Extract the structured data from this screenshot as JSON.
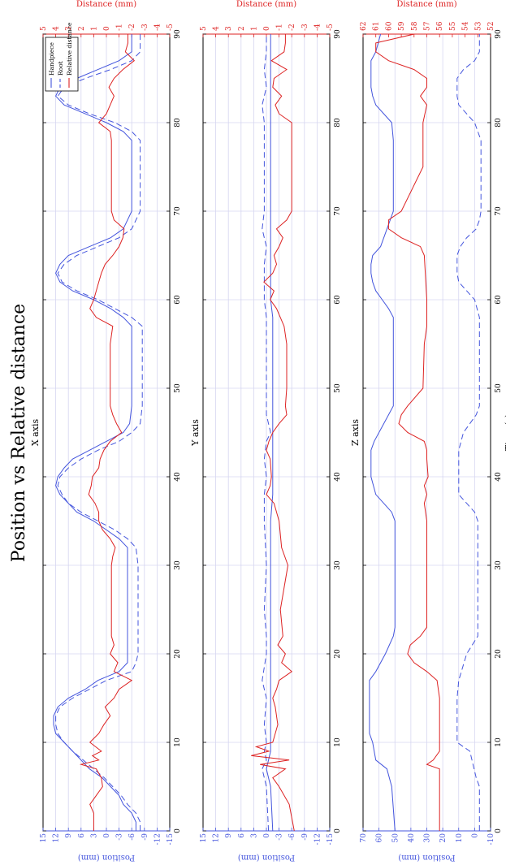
{
  "title": "Position vs Relative distance",
  "xlabel": "Time (s)",
  "legend": [
    "Handpiece",
    "Root",
    "Relative distance"
  ],
  "colors": {
    "handpiece": "#4455dd",
    "root": "#4455dd",
    "relative": "#dd2222",
    "grid": "#d6d6f0"
  },
  "chart_data": [
    {
      "type": "line",
      "title": "X axis",
      "ylabel": "Position (mm)",
      "ylabel_right": "Distance (mm)",
      "xlim": [
        0,
        90
      ],
      "xticks": [
        0,
        10,
        20,
        30,
        40,
        50,
        60,
        70,
        80,
        90
      ],
      "ylim": [
        -15,
        15
      ],
      "yticks": [
        -15,
        -12,
        -9,
        -6,
        -3,
        0,
        3,
        6,
        9,
        12,
        15
      ],
      "ylim_right": [
        -5,
        5
      ],
      "yticks_right": [
        -5,
        -4,
        -3,
        -2,
        -1,
        0,
        1,
        2,
        3,
        4,
        5
      ],
      "legend_position": "top-right",
      "series": [
        {
          "name": "Handpiece",
          "x": [
            0,
            1,
            2,
            3,
            4,
            5,
            6,
            7,
            8,
            9,
            10,
            11,
            12,
            13,
            14,
            15,
            16,
            17,
            18,
            19,
            20,
            22,
            25,
            30,
            32,
            33,
            34,
            35,
            36,
            37,
            38,
            39,
            40,
            41,
            42,
            43,
            44,
            45,
            46,
            48,
            50,
            55,
            57,
            58,
            59,
            60,
            61,
            62,
            63,
            64,
            65,
            66,
            67,
            68,
            70,
            75,
            78,
            79,
            80,
            81,
            82,
            83,
            84,
            85,
            86,
            87,
            88,
            90
          ],
          "y": [
            -7,
            -7,
            -6,
            -4,
            -3,
            -1,
            1,
            4,
            6,
            8,
            10,
            12,
            12.5,
            12.5,
            11.5,
            9,
            5,
            2,
            -3,
            -5,
            -5,
            -5,
            -5,
            -5,
            -5,
            -3,
            0,
            3,
            7,
            9,
            11,
            12,
            11.5,
            10,
            8,
            4,
            0,
            -4,
            -5.5,
            -6,
            -6,
            -6,
            -6,
            -4,
            -1,
            3,
            8,
            11,
            12,
            11,
            9,
            4,
            -1,
            -4,
            -6,
            -6,
            -6,
            -4,
            0,
            5,
            10,
            12,
            11,
            7,
            2,
            -3,
            -6,
            -6
          ]
        },
        {
          "name": "Root",
          "x": [
            0,
            1,
            2,
            3,
            4,
            5,
            6,
            7,
            8,
            9,
            10,
            11,
            12,
            13,
            14,
            15,
            16,
            17,
            18,
            19,
            20,
            22,
            25,
            30,
            32,
            33,
            34,
            35,
            36,
            37,
            38,
            39,
            40,
            41,
            42,
            43,
            44,
            45,
            46,
            48,
            50,
            55,
            57,
            58,
            59,
            60,
            61,
            62,
            63,
            64,
            65,
            66,
            67,
            68,
            70,
            75,
            78,
            79,
            80,
            81,
            82,
            83,
            84,
            85,
            86,
            87,
            88,
            90
          ],
          "y": [
            -8,
            -8,
            -7,
            -5,
            -3.5,
            -1.5,
            0.5,
            3,
            5.5,
            8,
            10,
            11.5,
            12,
            12,
            11,
            8,
            4,
            0,
            -6,
            -7,
            -7.5,
            -7.5,
            -7.5,
            -7.5,
            -7,
            -5,
            -2,
            2,
            6,
            9,
            10.5,
            11.5,
            11,
            9,
            6,
            2,
            -3,
            -6,
            -8,
            -8.5,
            -8.5,
            -8.5,
            -8.5,
            -6,
            -2,
            2,
            7,
            10.5,
            11.5,
            10,
            7,
            2,
            -3,
            -6,
            -8,
            -8,
            -8,
            -6,
            -2,
            4,
            9,
            11.5,
            10,
            5,
            -1,
            -6,
            -8,
            -8
          ]
        },
        {
          "name": "Relative distance",
          "axis": "right",
          "x": [
            0,
            2,
            3,
            4,
            5,
            6,
            7,
            7.5,
            8,
            8.5,
            9,
            10,
            11,
            12,
            13,
            14,
            15,
            16,
            17,
            18,
            19,
            20,
            21,
            22,
            25,
            30,
            31,
            32,
            33,
            34,
            35,
            36,
            37,
            38,
            39,
            40,
            41,
            42,
            43,
            44,
            45,
            46,
            47,
            48,
            50,
            55,
            57,
            58,
            59,
            60,
            61,
            62,
            63,
            64,
            65,
            66,
            67,
            68,
            69,
            70,
            75,
            78,
            79,
            80,
            81,
            82,
            83,
            84,
            85,
            86,
            87,
            88,
            89,
            90
          ],
          "y": [
            1,
            1,
            1.3,
            0.8,
            0.3,
            0.4,
            0.8,
            2,
            0.6,
            1.1,
            0.4,
            1.3,
            0.6,
            0.2,
            -0.3,
            0.1,
            -0.6,
            -1,
            -2,
            -0.6,
            -0.9,
            -0.3,
            -0.6,
            -0.4,
            -0.4,
            -0.4,
            -0.5,
            -0.7,
            -0.3,
            0.3,
            0.6,
            0.6,
            0.9,
            1.4,
            1.2,
            1.1,
            0.6,
            0.5,
            0.2,
            -0.3,
            -1.2,
            -0.8,
            -0.5,
            -0.3,
            -0.3,
            -0.3,
            -0.5,
            0.8,
            1.3,
            1,
            0.8,
            0.6,
            0.4,
            0.1,
            -0.5,
            -1,
            -1.3,
            -1.4,
            -0.6,
            -0.4,
            -0.4,
            -0.4,
            -0.3,
            0.6,
            0,
            -0.3,
            -0.6,
            -0.2,
            -0.6,
            -1.3,
            -2.2,
            -1.5,
            -1.7,
            -1.7
          ]
        }
      ]
    },
    {
      "type": "line",
      "title": "Y axis",
      "ylabel": "Position (mm)",
      "ylabel_right": "Distance (mm)",
      "xlim": [
        0,
        90
      ],
      "xticks": [
        0,
        10,
        20,
        30,
        40,
        50,
        60,
        70,
        80,
        90
      ],
      "ylim": [
        -15,
        15
      ],
      "yticks": [
        -15,
        -12,
        -9,
        -6,
        -3,
        0,
        3,
        6,
        9,
        12,
        15
      ],
      "ylim_right": [
        -5,
        5
      ],
      "yticks_right": [
        -5,
        -4,
        -3,
        -2,
        -1,
        0,
        1,
        2,
        3,
        4,
        5
      ],
      "series": [
        {
          "name": "Handpiece",
          "x": [
            0,
            5,
            7,
            8,
            9,
            10,
            12,
            15,
            20,
            30,
            35,
            38,
            40,
            42,
            45,
            50,
            55,
            58,
            60,
            62,
            64,
            66,
            68,
            70,
            75,
            80,
            82,
            84,
            86,
            88,
            90
          ],
          "y": [
            -1.5,
            -1,
            0,
            -0.5,
            -1,
            -1,
            -1,
            -1,
            -1,
            -1,
            -1,
            -1.5,
            -1.5,
            -1.5,
            -1.5,
            -1.5,
            -1.5,
            -1.5,
            -1,
            -1,
            -1,
            -1,
            -1,
            -1,
            -1,
            -1,
            -1,
            -1,
            -1,
            -1,
            -1
          ]
        },
        {
          "name": "Root",
          "x": [
            0,
            5,
            7,
            8,
            9,
            10,
            12,
            15,
            17,
            20,
            22,
            25,
            30,
            35,
            38,
            40,
            42,
            44,
            45,
            47,
            50,
            55,
            58,
            60,
            62,
            64,
            66,
            68,
            70,
            72,
            75,
            78,
            80,
            82,
            84,
            86,
            88,
            90
          ],
          "y": [
            -0.5,
            0,
            1,
            0,
            0.5,
            0,
            0.5,
            0,
            1,
            0,
            0,
            0.5,
            0,
            0.5,
            0.5,
            0,
            0.5,
            0,
            -1,
            0,
            0,
            0,
            0,
            0.5,
            0.5,
            0.5,
            0,
            1,
            0.5,
            0.5,
            0.5,
            0.5,
            0.5,
            1,
            0,
            0.5,
            0,
            0
          ]
        },
        {
          "name": "Relative distance",
          "axis": "right",
          "x": [
            0,
            3,
            5,
            6,
            7,
            7.5,
            8,
            8.5,
            9,
            9.5,
            10,
            12,
            14,
            15,
            16,
            17,
            18,
            19,
            20,
            21,
            22,
            25,
            30,
            32,
            35,
            37,
            38,
            39,
            40,
            42,
            43,
            44,
            45,
            46,
            47,
            48,
            50,
            55,
            57,
            59,
            60,
            61,
            62,
            63,
            64,
            65,
            66,
            67,
            68,
            69,
            70,
            75,
            80,
            81,
            82,
            83,
            84,
            85,
            86,
            87,
            88,
            89,
            90
          ],
          "y": [
            -2.2,
            -1.8,
            -1,
            -0.5,
            -1.5,
            0.5,
            -1.8,
            1.2,
            -0.2,
            0.8,
            -0.5,
            -0.9,
            -0.7,
            -0.5,
            -0.8,
            -1,
            -2,
            -1.2,
            -1.5,
            -0.9,
            -1.3,
            -1.1,
            -1.7,
            -1.2,
            -1,
            -0.6,
            0,
            -0.3,
            -0.4,
            -0.3,
            0,
            -0.2,
            -0.5,
            -1,
            -1.6,
            -1.5,
            -1.6,
            -1.6,
            -1.4,
            -0.8,
            -0.3,
            -0.6,
            0.2,
            -0.5,
            -0.8,
            -0.6,
            -1,
            -1.3,
            -0.8,
            -1.6,
            -2,
            -2,
            -2,
            -1,
            -0.7,
            -1.2,
            -0.5,
            -0.6,
            -1.6,
            -0.4,
            -1.4,
            -1.5,
            -1.5
          ]
        }
      ]
    },
    {
      "type": "line",
      "title": "Z axis",
      "xlabel": "Time (s)",
      "ylabel": "Position (mm)",
      "ylabel_right": "Distance (mm)",
      "xlim": [
        0,
        90
      ],
      "xticks": [
        0,
        10,
        20,
        30,
        40,
        50,
        60,
        70,
        80,
        90
      ],
      "ylim": [
        -10,
        70
      ],
      "yticks": [
        -10,
        0,
        10,
        20,
        30,
        40,
        50,
        60,
        70
      ],
      "ylim_right": [
        52,
        62
      ],
      "yticks_right": [
        52,
        53,
        54,
        55,
        56,
        57,
        58,
        59,
        60,
        61,
        62
      ],
      "series": [
        {
          "name": "Handpiece",
          "x": [
            0,
            5,
            7,
            8,
            9,
            10,
            11,
            15,
            17,
            18,
            20,
            22,
            23,
            30,
            35,
            36,
            37,
            38,
            40,
            43,
            44,
            46,
            48,
            55,
            58,
            59,
            60,
            61,
            62,
            63,
            64,
            65,
            66,
            70,
            78,
            80,
            82,
            83,
            84,
            85,
            86,
            87,
            88,
            90
          ],
          "y": [
            50,
            52,
            55,
            62,
            63,
            64,
            66,
            66,
            66,
            62,
            56,
            51,
            50,
            50,
            50,
            52,
            57,
            62,
            65,
            65,
            63,
            57,
            51,
            51,
            51,
            54,
            58,
            62,
            64,
            65,
            65,
            64,
            59,
            51,
            51,
            52,
            62,
            64,
            65,
            65,
            65,
            65,
            62,
            59
          ]
        },
        {
          "name": "Root",
          "x": [
            0,
            5,
            6,
            9,
            10,
            15,
            17,
            20,
            22,
            30,
            35,
            36,
            37,
            38,
            43,
            45,
            46,
            47,
            48,
            55,
            58,
            60,
            61,
            62,
            63,
            65,
            66,
            67,
            68,
            69,
            70,
            78,
            80,
            81,
            82,
            83,
            85,
            86,
            87,
            88,
            90
          ],
          "y": [
            -3,
            -3,
            -1,
            3,
            11,
            11,
            10,
            5,
            -2,
            -2,
            -2,
            0,
            5,
            10,
            10,
            7,
            3,
            -1,
            -3,
            -3,
            -3,
            0,
            5,
            10,
            11,
            11,
            9,
            5,
            -1,
            -3,
            -4,
            -4,
            0,
            5,
            10,
            11,
            11,
            7,
            0,
            -3,
            -3
          ]
        },
        {
          "name": "Relative distance",
          "axis": "right",
          "x": [
            0,
            5,
            7,
            7.5,
            8,
            9,
            10,
            12,
            15,
            17,
            18,
            19,
            20,
            21,
            22,
            23,
            25,
            30,
            35,
            37,
            38,
            39,
            40,
            42,
            43,
            44,
            45,
            46,
            47,
            48,
            50,
            55,
            57,
            60,
            65,
            66,
            67,
            68,
            69,
            70,
            75,
            80,
            82,
            83,
            84,
            85,
            86,
            87,
            88,
            89,
            90
          ],
          "y": [
            56,
            56,
            56,
            57,
            56.5,
            56,
            56,
            56,
            56,
            56.2,
            57,
            58,
            58.5,
            58.3,
            57.5,
            57,
            57,
            57,
            57,
            57.2,
            57,
            57.2,
            56.9,
            57,
            57,
            57.2,
            58.5,
            59.2,
            59,
            58.5,
            57.3,
            57.2,
            57,
            57,
            57.2,
            57.5,
            59,
            60,
            60,
            59,
            57.3,
            57.3,
            57,
            57.5,
            57,
            57,
            58,
            60,
            61,
            61,
            58
          ]
        }
      ]
    }
  ]
}
